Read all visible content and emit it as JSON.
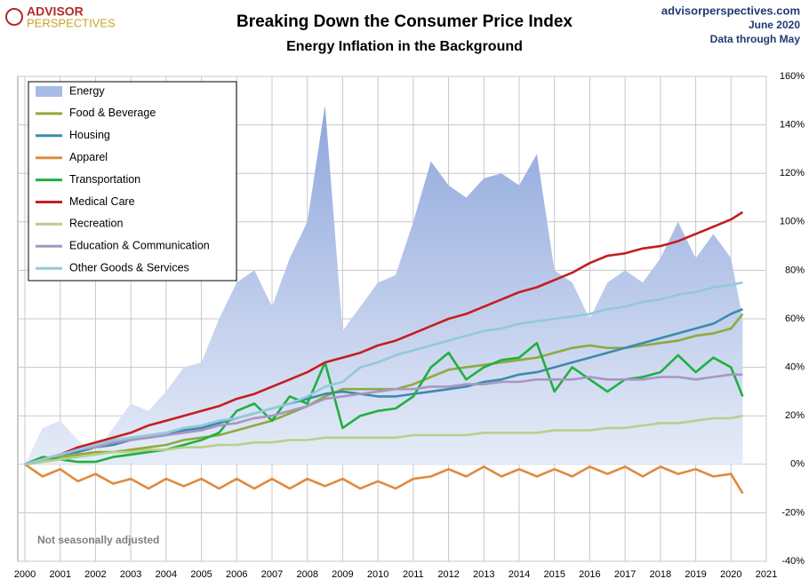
{
  "chart_data": {
    "type": "line",
    "title": "Breaking Down the Consumer Price Index",
    "subtitle": "Energy Inflation in the Background",
    "logo": [
      "ADVISOR",
      "PERSPECTIVES"
    ],
    "source": "advisorperspectives.com",
    "date": "June 2020",
    "data_note": "Data through May",
    "annotation": "Not seasonally adjusted",
    "grid": true,
    "legend": "top-left",
    "xlim": [
      2000,
      2021
    ],
    "xticks": [
      2000,
      2001,
      2002,
      2003,
      2004,
      2005,
      2006,
      2007,
      2008,
      2009,
      2010,
      2011,
      2012,
      2013,
      2014,
      2015,
      2016,
      2017,
      2018,
      2019,
      2020,
      2021
    ],
    "ylim": [
      -40,
      160
    ],
    "yticks": [
      {
        "value": -40,
        "label": "-40%"
      },
      {
        "value": -20,
        "label": "-20%"
      },
      {
        "value": 0,
        "label": "0%"
      },
      {
        "value": 20,
        "label": "20%"
      },
      {
        "value": 40,
        "label": "40%"
      },
      {
        "value": 60,
        "label": "60%"
      },
      {
        "value": 80,
        "label": "80%"
      },
      {
        "value": 100,
        "label": "100%"
      },
      {
        "value": 120,
        "label": "120%"
      },
      {
        "value": 140,
        "label": "140%"
      },
      {
        "value": 160,
        "label": "160%"
      }
    ],
    "x": [
      2000,
      2000.5,
      2001,
      2001.5,
      2002,
      2002.5,
      2003,
      2003.5,
      2004,
      2004.5,
      2005,
      2005.5,
      2006,
      2006.5,
      2007,
      2007.5,
      2008,
      2008.5,
      2009,
      2009.5,
      2010,
      2010.5,
      2011,
      2011.5,
      2012,
      2012.5,
      2013,
      2013.5,
      2014,
      2014.5,
      2015,
      2015.5,
      2016,
      2016.5,
      2017,
      2017.5,
      2018,
      2018.5,
      2019,
      2019.5,
      2020,
      2020.33
    ],
    "series": [
      {
        "name": "Energy",
        "color": "#a8bbe6",
        "area": true,
        "values": [
          0,
          15,
          18,
          10,
          5,
          15,
          25,
          22,
          30,
          40,
          42,
          60,
          75,
          80,
          65,
          85,
          100,
          148,
          55,
          65,
          75,
          78,
          100,
          125,
          115,
          110,
          118,
          120,
          115,
          128,
          80,
          75,
          60,
          75,
          80,
          75,
          85,
          100,
          85,
          95,
          85,
          60
        ]
      },
      {
        "name": "Food & Beverage",
        "color": "#8faa3c",
        "values": [
          0,
          1,
          3,
          4,
          5,
          5,
          6,
          7,
          8,
          10,
          11,
          12,
          14,
          16,
          18,
          21,
          24,
          28,
          31,
          31,
          31,
          31,
          33,
          36,
          39,
          40,
          41,
          42,
          43,
          44,
          46,
          48,
          49,
          48,
          48,
          49,
          50,
          51,
          53,
          54,
          56,
          62
        ]
      },
      {
        "name": "Housing",
        "color": "#3b8bb0",
        "values": [
          0,
          2,
          4,
          5,
          7,
          8,
          10,
          11,
          12,
          14,
          15,
          17,
          19,
          21,
          23,
          25,
          27,
          29,
          30,
          29,
          28,
          28,
          29,
          30,
          31,
          32,
          34,
          35,
          37,
          38,
          40,
          42,
          44,
          46,
          48,
          50,
          52,
          54,
          56,
          58,
          62,
          64
        ]
      },
      {
        "name": "Apparel",
        "color": "#e08a3c",
        "values": [
          0,
          -5,
          -2,
          -7,
          -4,
          -8,
          -6,
          -10,
          -6,
          -9,
          -6,
          -10,
          -6,
          -10,
          -6,
          -10,
          -6,
          -9,
          -6,
          -10,
          -7,
          -10,
          -6,
          -5,
          -2,
          -5,
          -1,
          -5,
          -2,
          -5,
          -2,
          -5,
          -1,
          -4,
          -1,
          -5,
          -1,
          -4,
          -2,
          -5,
          -4,
          -12
        ]
      },
      {
        "name": "Transportation",
        "color": "#1fb040",
        "values": [
          0,
          3,
          2,
          1,
          1,
          3,
          4,
          5,
          6,
          8,
          10,
          13,
          22,
          25,
          18,
          28,
          25,
          42,
          15,
          20,
          22,
          23,
          28,
          40,
          46,
          35,
          40,
          43,
          44,
          50,
          30,
          40,
          35,
          30,
          35,
          36,
          38,
          45,
          38,
          44,
          40,
          28
        ]
      },
      {
        "name": "Medical Care",
        "color": "#c41e1e",
        "values": [
          0,
          2,
          4,
          7,
          9,
          11,
          13,
          16,
          18,
          20,
          22,
          24,
          27,
          29,
          32,
          35,
          38,
          42,
          44,
          46,
          49,
          51,
          54,
          57,
          60,
          62,
          65,
          68,
          71,
          73,
          76,
          79,
          83,
          86,
          87,
          89,
          90,
          92,
          95,
          98,
          101,
          104
        ]
      },
      {
        "name": "Recreation",
        "color": "#b8d08a",
        "values": [
          0,
          1,
          2,
          3,
          4,
          5,
          5,
          6,
          6,
          7,
          7,
          8,
          8,
          9,
          9,
          10,
          10,
          11,
          11,
          11,
          11,
          11,
          12,
          12,
          12,
          12,
          13,
          13,
          13,
          13,
          14,
          14,
          14,
          15,
          15,
          16,
          17,
          17,
          18,
          19,
          19,
          20
        ]
      },
      {
        "name": "Education & Communication",
        "color": "#a995c2",
        "values": [
          0,
          2,
          4,
          6,
          7,
          9,
          10,
          11,
          12,
          13,
          14,
          16,
          17,
          19,
          20,
          22,
          24,
          27,
          28,
          29,
          30,
          31,
          31,
          32,
          32,
          33,
          33,
          34,
          34,
          35,
          35,
          35,
          36,
          35,
          35,
          35,
          36,
          36,
          35,
          36,
          37,
          37
        ]
      },
      {
        "name": "Other Goods & Services",
        "color": "#94c8dc",
        "values": [
          0,
          2,
          4,
          6,
          8,
          10,
          11,
          12,
          13,
          15,
          16,
          18,
          19,
          21,
          23,
          25,
          28,
          32,
          34,
          40,
          42,
          45,
          47,
          49,
          51,
          53,
          55,
          56,
          58,
          59,
          60,
          61,
          62,
          64,
          65,
          67,
          68,
          70,
          71,
          73,
          74,
          75
        ]
      }
    ]
  }
}
